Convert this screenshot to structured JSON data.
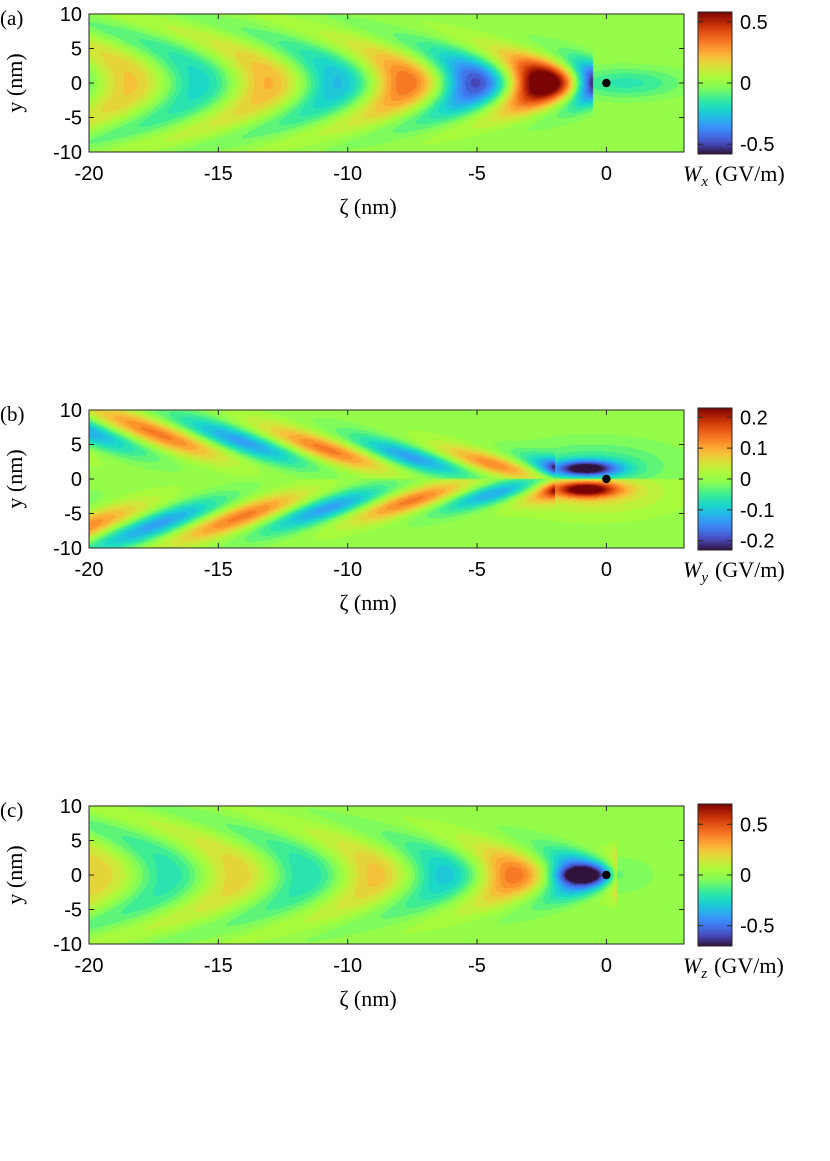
{
  "chart_data": [
    {
      "type": "heatmap",
      "panel_label": "(a)",
      "xlabel": "ζ (nm)",
      "ylabel": "y (nm)",
      "xlim": [
        -20,
        3
      ],
      "ylim": [
        -10,
        10
      ],
      "xticks": [
        "-20",
        "-15",
        "-10",
        "-5",
        "0"
      ],
      "yticks": [
        "10",
        "5",
        "0",
        "-5",
        "-10"
      ],
      "colorbar_label": "Wx (GV/m)",
      "colorbar_label_symbol": "W",
      "colorbar_label_sub": "x",
      "colorbar_label_unit": "(GV/m)",
      "clim": [
        -0.58,
        0.58
      ],
      "colorbar_ticks": [
        "0.5",
        "0",
        "-0.5"
      ],
      "colormap": "turbo",
      "field_pattern": "symmetric-chevron",
      "peak_value": 0.55,
      "wavelength_nm": 5.3,
      "marker": {
        "x": 0,
        "y": 0
      },
      "series": [
        {
          "name": "min-lobe",
          "x": 0.5,
          "y": 0,
          "value": -0.2
        },
        {
          "name": "max-lobe",
          "x": -2.5,
          "y": 0,
          "value": 0.55
        },
        {
          "name": "min-lobe",
          "x": -5.2,
          "y": 0,
          "value": -0.3
        },
        {
          "name": "max-lobe",
          "x": -8.0,
          "y": 0,
          "value": 0.35
        },
        {
          "name": "min-lobe",
          "x": -10.8,
          "y": 0,
          "value": -0.25
        },
        {
          "name": "max-lobe",
          "x": -13.5,
          "y": 0,
          "value": 0.25
        },
        {
          "name": "min-lobe",
          "x": -16.2,
          "y": 0,
          "value": -0.22
        },
        {
          "name": "max-lobe",
          "x": -19.0,
          "y": 0,
          "value": 0.2
        }
      ]
    },
    {
      "type": "heatmap",
      "panel_label": "(b)",
      "xlabel": "ζ (nm)",
      "ylabel": "y (nm)",
      "xlim": [
        -20,
        3
      ],
      "ylim": [
        -10,
        10
      ],
      "xticks": [
        "-20",
        "-15",
        "-10",
        "-5",
        "0"
      ],
      "yticks": [
        "10",
        "5",
        "0",
        "-5",
        "-10"
      ],
      "colorbar_label": "Wy (GV/m)",
      "colorbar_label_symbol": "W",
      "colorbar_label_sub": "y",
      "colorbar_label_unit": "(GV/m)",
      "clim": [
        -0.23,
        0.23
      ],
      "colorbar_ticks": [
        "0.2",
        "0.1",
        "0",
        "-0.1",
        "-0.2"
      ],
      "colormap": "turbo",
      "field_pattern": "antisymmetric-diagonal-stripes",
      "peak_value": 0.22,
      "wavelength_nm": 5.3,
      "marker": {
        "x": 0,
        "y": 0
      },
      "series": [
        {
          "name": "upper-lobe",
          "x": -0.8,
          "y": 1.5,
          "value": -0.22
        },
        {
          "name": "lower-lobe",
          "x": -0.8,
          "y": -1.5,
          "value": 0.22
        }
      ]
    },
    {
      "type": "heatmap",
      "panel_label": "(c)",
      "xlabel": "ζ (nm)",
      "ylabel": "y (nm)",
      "xlim": [
        -20,
        3
      ],
      "ylim": [
        -10,
        10
      ],
      "xticks": [
        "-20",
        "-15",
        "-10",
        "-5",
        "0"
      ],
      "yticks": [
        "10",
        "5",
        "0",
        "-5",
        "-10"
      ],
      "colorbar_label": "Wz (GV/m)",
      "colorbar_label_symbol": "W",
      "colorbar_label_sub": "z",
      "colorbar_label_unit": "(GV/m)",
      "clim": [
        -0.7,
        0.7
      ],
      "colorbar_ticks": [
        "0.5",
        "0",
        "-0.5"
      ],
      "colormap": "turbo",
      "field_pattern": "symmetric-chevron",
      "peak_value": 0.7,
      "wavelength_nm": 5.3,
      "marker": {
        "x": 0,
        "y": 0
      },
      "series": [
        {
          "name": "min-lobe",
          "x": -1.0,
          "y": 0,
          "value": -0.7
        },
        {
          "name": "max-lobe",
          "x": -3.8,
          "y": 0,
          "value": 0.45
        },
        {
          "name": "min-lobe",
          "x": -6.5,
          "y": 0,
          "value": -0.35
        },
        {
          "name": "max-lobe",
          "x": -9.3,
          "y": 0,
          "value": 0.3
        },
        {
          "name": "min-lobe",
          "x": -12.0,
          "y": 0,
          "value": -0.28
        },
        {
          "name": "max-lobe",
          "x": -14.8,
          "y": 0,
          "value": 0.25
        },
        {
          "name": "min-lobe",
          "x": -17.6,
          "y": 0,
          "value": -0.22
        }
      ]
    }
  ]
}
